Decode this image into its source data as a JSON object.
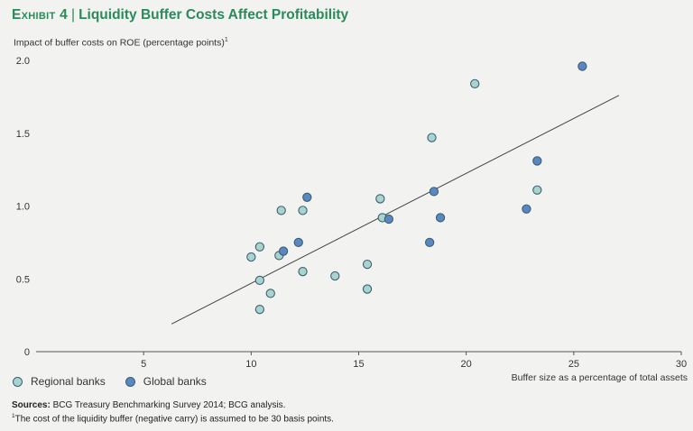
{
  "header": {
    "exhibit": "Exhibit 4",
    "separator": "|",
    "title": "Liquidity Buffer Costs Affect Profitability"
  },
  "legend": {
    "regional": "Regional banks",
    "global": "Global banks"
  },
  "colors": {
    "title": "#2b8a5a",
    "regional_fill": "#a9d3cf",
    "global_fill": "#5a86c2",
    "marker_stroke": "#3a6070",
    "trendline": "#444444"
  },
  "source_note": {
    "label": "Sources:",
    "text": "BCG Treasury Benchmarking Survey 2014; BCG analysis."
  },
  "footnote": {
    "marker": "1",
    "text": "The cost of the liquidity buffer (negative carry) is assumed to be 30 basis points."
  },
  "chart_data": {
    "type": "scatter",
    "title": "Liquidity Buffer Costs Affect Profitability",
    "ylabel": "Impact of buffer costs on ROE (percentage points)",
    "ylabel_footnote": "1",
    "xlabel": "Buffer size as a percentage of total assets",
    "xlim": [
      0,
      30
    ],
    "ylim": [
      0,
      2.0
    ],
    "xticks": [
      5,
      10,
      15,
      20,
      25,
      30
    ],
    "xtick_labels": [
      "5",
      "10",
      "15",
      "20",
      "25",
      "30"
    ],
    "yticks": [
      0,
      0.5,
      1.0,
      1.5,
      2.0
    ],
    "ytick_labels": [
      "0",
      "0.5",
      "1.0",
      "1.5",
      "2.0"
    ],
    "grid": false,
    "legend_position": "bottom-left",
    "series": [
      {
        "name": "Regional banks",
        "points": [
          {
            "x": 10.0,
            "y": 0.65
          },
          {
            "x": 10.4,
            "y": 0.72
          },
          {
            "x": 10.4,
            "y": 0.49
          },
          {
            "x": 10.9,
            "y": 0.4
          },
          {
            "x": 10.4,
            "y": 0.29
          },
          {
            "x": 11.3,
            "y": 0.66
          },
          {
            "x": 11.4,
            "y": 0.97
          },
          {
            "x": 12.4,
            "y": 0.97
          },
          {
            "x": 12.4,
            "y": 0.55
          },
          {
            "x": 13.9,
            "y": 0.52
          },
          {
            "x": 15.4,
            "y": 0.6
          },
          {
            "x": 15.4,
            "y": 0.43
          },
          {
            "x": 16.0,
            "y": 1.05
          },
          {
            "x": 16.1,
            "y": 0.92
          },
          {
            "x": 18.4,
            "y": 1.47
          },
          {
            "x": 20.4,
            "y": 1.84
          },
          {
            "x": 23.3,
            "y": 1.11
          }
        ]
      },
      {
        "name": "Global banks",
        "points": [
          {
            "x": 11.5,
            "y": 0.69
          },
          {
            "x": 12.2,
            "y": 0.75
          },
          {
            "x": 12.6,
            "y": 1.06
          },
          {
            "x": 16.4,
            "y": 0.91
          },
          {
            "x": 18.3,
            "y": 0.75
          },
          {
            "x": 18.5,
            "y": 1.1
          },
          {
            "x": 18.8,
            "y": 0.92
          },
          {
            "x": 22.8,
            "y": 0.98
          },
          {
            "x": 23.3,
            "y": 1.31
          },
          {
            "x": 25.4,
            "y": 1.96
          }
        ]
      }
    ],
    "trendline": {
      "x": [
        6.3,
        27.1
      ],
      "y": [
        0.19,
        1.76
      ]
    }
  }
}
